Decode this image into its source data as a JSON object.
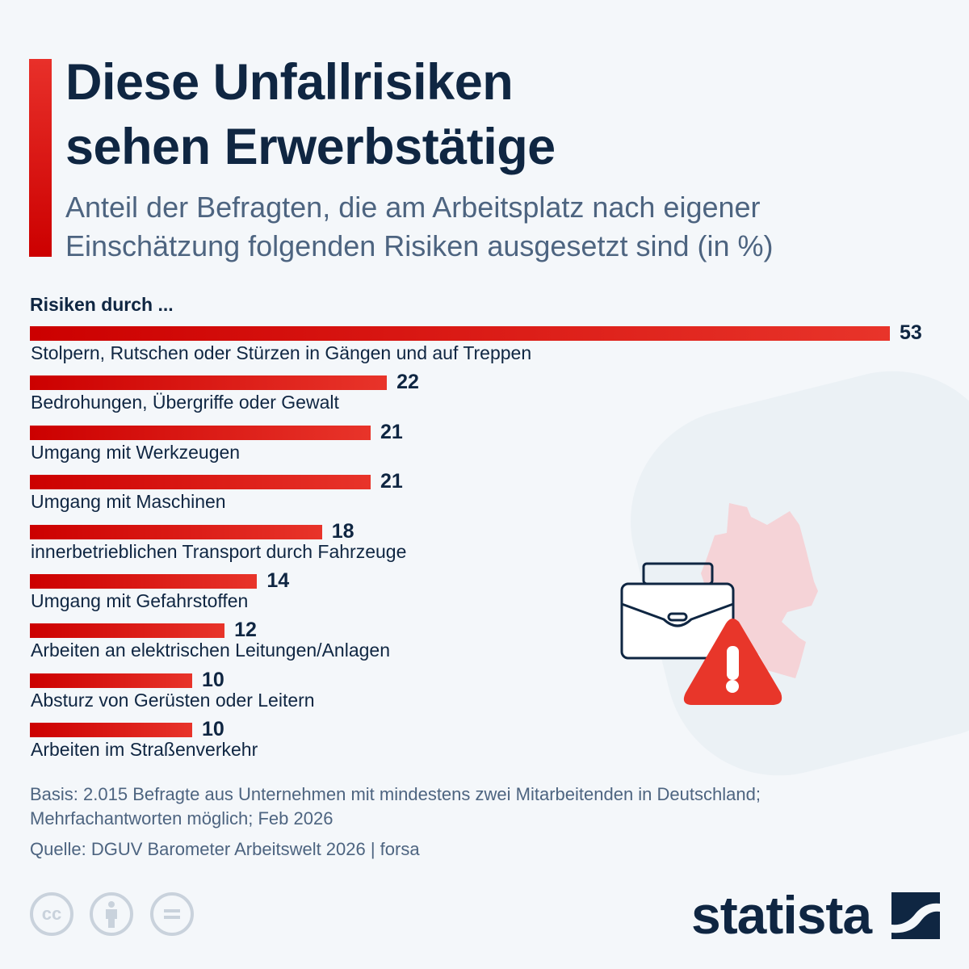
{
  "header": {
    "title_line1": "Diese Unfallrisiken",
    "title_line2": "sehen Erwerbstätige",
    "subtitle_line1": "Anteil der Befragten, die am Arbeitsplatz nach eigener",
    "subtitle_line2": "Einschätzung folgenden Risiken ausgesetzt sind (in %)"
  },
  "chart_data": {
    "type": "bar",
    "orientation": "horizontal",
    "category_header": "Risiken durch ...",
    "categories": [
      "Stolpern, Rutschen oder Stürzen in Gängen und auf Treppen",
      "Bedrohungen, Übergriffe oder Gewalt",
      "Umgang mit Werkzeugen",
      "Umgang mit Maschinen",
      "innerbetrieblichen Transport durch Fahrzeuge",
      "Umgang mit Gefahrstoffen",
      "Arbeiten an elektrischen Leitungen/Anlagen",
      "Absturz von Gerüsten oder Leitern",
      "Arbeiten im Straßenverkehr"
    ],
    "values": [
      53,
      22,
      21,
      21,
      18,
      14,
      12,
      10,
      10
    ],
    "unit": "%",
    "grid": false,
    "colors": {
      "bar_start": "#cc0000",
      "bar_end": "#e8342a"
    }
  },
  "footer": {
    "basis_line1": "Basis: 2.015 Befragte aus Unternehmen mit mindestens zwei Mitarbeitenden in Deutschland;",
    "basis_line2": "Mehrfachantworten möglich; Feb 2026",
    "source": "Quelle: DGUV Barometer Arbeitswelt 2026 | forsa",
    "brand": "statista",
    "license_icons": [
      "cc-icon",
      "attribution-icon",
      "no-derivatives-icon"
    ],
    "cc_text": "cc"
  },
  "illustration": {
    "icons": [
      "germany-map-icon",
      "briefcase-icon",
      "warning-triangle-icon"
    ]
  }
}
